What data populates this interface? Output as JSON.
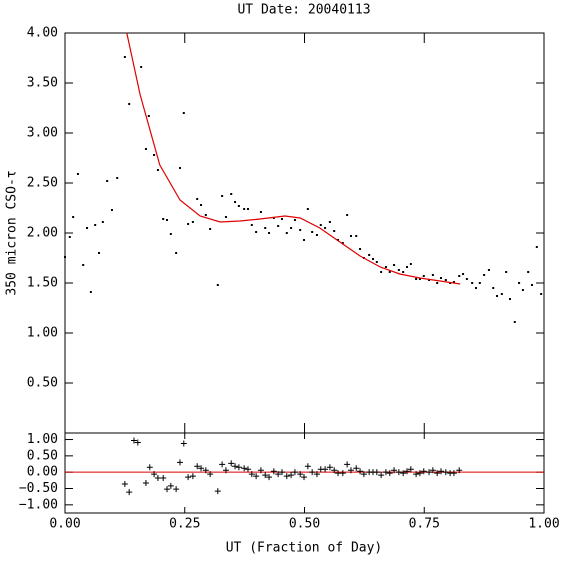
{
  "chart_data": [
    {
      "type": "scatter",
      "title": "UT Date: 20040113",
      "ylabel": "350 micron CSO-τ",
      "xlim": [
        0,
        1
      ],
      "ylim": [
        0,
        4
      ],
      "yticks": [
        {
          "value": 0.5,
          "label": "0.50"
        },
        {
          "value": 1,
          "label": "1.00"
        },
        {
          "value": 1.5,
          "label": "1.50"
        },
        {
          "value": 2,
          "label": "2.00"
        },
        {
          "value": 2.5,
          "label": "2.50"
        },
        {
          "value": 3,
          "label": "3.00"
        },
        {
          "value": 3.5,
          "label": "3.50"
        },
        {
          "value": 4,
          "label": "4.00"
        }
      ],
      "series": [
        {
          "mode": "points",
          "color": "#000000",
          "x": [
            0.0,
            0.01,
            0.017,
            0.027,
            0.038,
            0.046,
            0.054,
            0.063,
            0.071,
            0.079,
            0.088,
            0.098,
            0.109,
            0.125,
            0.134,
            0.159,
            0.169,
            0.175,
            0.186,
            0.194,
            0.205,
            0.213,
            0.221,
            0.232,
            0.24,
            0.248,
            0.257,
            0.267,
            0.276,
            0.284,
            0.294,
            0.303,
            0.319,
            0.328,
            0.336,
            0.347,
            0.355,
            0.363,
            0.374,
            0.382,
            0.39,
            0.399,
            0.409,
            0.418,
            0.426,
            0.436,
            0.445,
            0.453,
            0.463,
            0.472,
            0.48,
            0.491,
            0.499,
            0.507,
            0.516,
            0.526,
            0.534,
            0.543,
            0.553,
            0.562,
            0.57,
            0.58,
            0.589,
            0.597,
            0.608,
            0.616,
            0.624,
            0.635,
            0.643,
            0.651,
            0.66,
            0.67,
            0.678,
            0.687,
            0.697,
            0.706,
            0.714,
            0.722,
            0.733,
            0.741,
            0.749,
            0.76,
            0.768,
            0.777,
            0.785,
            0.795,
            0.804,
            0.812,
            0.823,
            0.831,
            0.839,
            0.85,
            0.858,
            0.866,
            0.875,
            0.885,
            0.894,
            0.902,
            0.912,
            0.921,
            0.929,
            0.939,
            0.948,
            0.956,
            0.967,
            0.975,
            0.985,
            0.994
          ],
          "values": [
            1.76,
            1.96,
            2.16,
            2.59,
            1.68,
            2.05,
            1.41,
            2.08,
            1.8,
            2.11,
            2.52,
            2.23,
            2.55,
            3.76,
            3.29,
            3.66,
            2.84,
            3.17,
            2.78,
            2.63,
            2.14,
            2.13,
            1.99,
            1.8,
            2.65,
            3.2,
            2.09,
            2.11,
            2.34,
            2.28,
            2.18,
            2.04,
            1.48,
            2.37,
            2.16,
            2.39,
            2.31,
            2.27,
            2.24,
            2.24,
            2.08,
            2.01,
            2.21,
            2.05,
            2.0,
            2.15,
            2.07,
            2.14,
            2.0,
            2.05,
            2.13,
            2.03,
            1.93,
            2.24,
            2.01,
            1.98,
            2.08,
            2.05,
            2.11,
            2.02,
            1.93,
            1.9,
            2.18,
            1.97,
            1.97,
            1.84,
            1.75,
            1.78,
            1.74,
            1.71,
            1.61,
            1.66,
            1.61,
            1.68,
            1.63,
            1.61,
            1.66,
            1.69,
            1.54,
            1.54,
            1.57,
            1.53,
            1.58,
            1.5,
            1.55,
            1.53,
            1.5,
            1.51,
            1.57,
            1.59,
            1.54,
            1.5,
            1.45,
            1.5,
            1.58,
            1.63,
            1.45,
            1.37,
            1.39,
            1.61,
            1.34,
            1.11,
            1.5,
            1.43,
            1.61,
            1.48,
            1.86,
            1.39
          ]
        },
        {
          "mode": "line",
          "color": "#e00000",
          "x": [
            0.129,
            0.157,
            0.198,
            0.24,
            0.282,
            0.324,
            0.365,
            0.407,
            0.459,
            0.491,
            0.532,
            0.574,
            0.616,
            0.658,
            0.699,
            0.741,
            0.783,
            0.825
          ],
          "values": [
            4.0,
            3.38,
            2.68,
            2.33,
            2.17,
            2.11,
            2.12,
            2.14,
            2.17,
            2.15,
            2.05,
            1.91,
            1.77,
            1.66,
            1.59,
            1.55,
            1.52,
            1.49
          ]
        }
      ]
    },
    {
      "type": "scatter",
      "xlabel": "UT (Fraction of Day)",
      "xlim": [
        0,
        1
      ],
      "ylim": [
        -1.25,
        1.2
      ],
      "xticks": [
        {
          "value": 0,
          "label": "0.00"
        },
        {
          "value": 0.25,
          "label": "0.25"
        },
        {
          "value": 0.5,
          "label": "0.50"
        },
        {
          "value": 0.75,
          "label": "0.75"
        },
        {
          "value": 1,
          "label": "1.00"
        }
      ],
      "yticks": [
        {
          "value": -1,
          "label": "−1.00"
        },
        {
          "value": -0.5,
          "label": "−0.50"
        },
        {
          "value": 0,
          "label": "0.00"
        },
        {
          "value": 0.5,
          "label": "0.50"
        },
        {
          "value": 1,
          "label": "1.00"
        }
      ],
      "hline": {
        "value": 0,
        "color": "#e00000"
      },
      "series": [
        {
          "mode": "plus",
          "color": "#000000",
          "x": [
            0.125,
            0.134,
            0.144,
            0.152,
            0.169,
            0.177,
            0.186,
            0.194,
            0.205,
            0.213,
            0.221,
            0.232,
            0.24,
            0.248,
            0.257,
            0.267,
            0.276,
            0.284,
            0.294,
            0.303,
            0.319,
            0.328,
            0.336,
            0.347,
            0.355,
            0.363,
            0.374,
            0.382,
            0.39,
            0.399,
            0.409,
            0.418,
            0.426,
            0.436,
            0.445,
            0.453,
            0.463,
            0.472,
            0.48,
            0.491,
            0.499,
            0.507,
            0.516,
            0.526,
            0.534,
            0.543,
            0.553,
            0.562,
            0.57,
            0.58,
            0.589,
            0.597,
            0.608,
            0.616,
            0.624,
            0.635,
            0.643,
            0.651,
            0.66,
            0.67,
            0.678,
            0.687,
            0.697,
            0.706,
            0.714,
            0.722,
            0.733,
            0.741,
            0.749,
            0.76,
            0.768,
            0.777,
            0.785,
            0.795,
            0.804,
            0.812,
            0.823
          ],
          "values": [
            -0.36,
            -0.61,
            0.97,
            0.91,
            -0.33,
            0.15,
            -0.06,
            -0.18,
            -0.18,
            -0.52,
            -0.42,
            -0.52,
            0.3,
            0.88,
            -0.15,
            -0.12,
            0.18,
            0.12,
            0.06,
            -0.06,
            -0.58,
            0.24,
            0.06,
            0.27,
            0.18,
            0.15,
            0.12,
            0.09,
            -0.06,
            -0.12,
            0.06,
            -0.09,
            -0.15,
            0.03,
            -0.06,
            0,
            -0.12,
            -0.09,
            0,
            -0.06,
            -0.15,
            0.18,
            0,
            -0.06,
            0.09,
            0.09,
            0.15,
            0.06,
            -0.03,
            -0.03,
            0.24,
            0.06,
            0.12,
            0.03,
            -0.06,
            0,
            0,
            0,
            -0.09,
            0,
            -0.03,
            0.06,
            0,
            -0.03,
            0.03,
            0.09,
            -0.06,
            -0.03,
            0.03,
            0,
            0.06,
            -0.03,
            0.03,
            0,
            -0.03,
            -0.03,
            0.06
          ]
        }
      ]
    }
  ]
}
